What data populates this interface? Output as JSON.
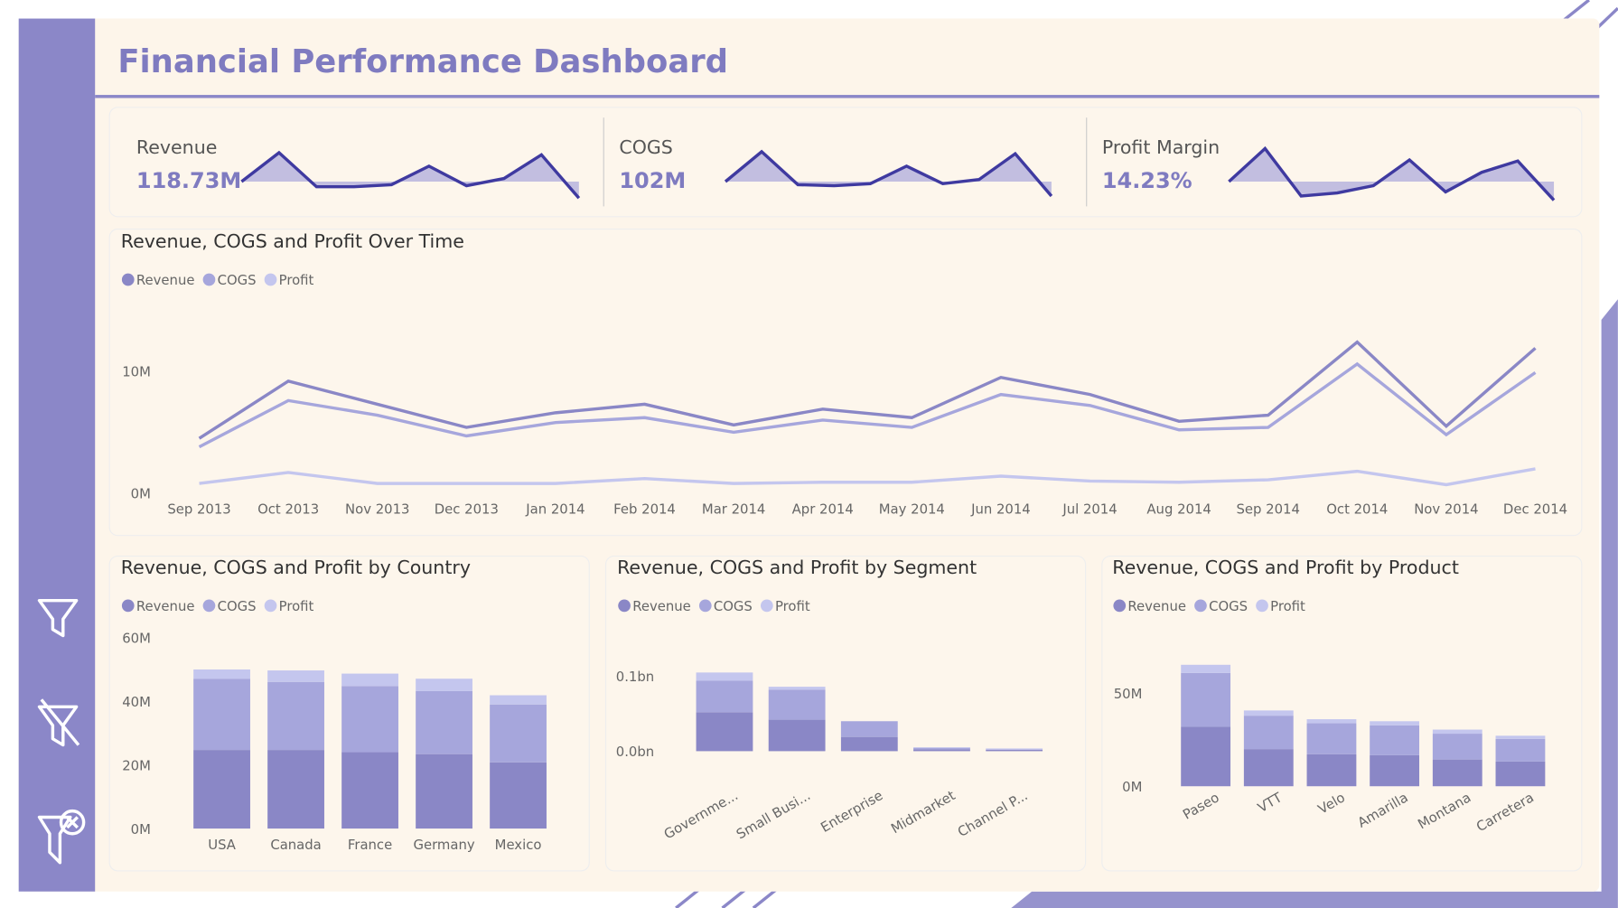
{
  "header": {
    "title": "Financial Performance Dashboard"
  },
  "kpis": [
    {
      "label": "Revenue",
      "value": "118.73M",
      "trend": [
        24,
        52,
        19,
        19,
        21,
        39,
        20,
        27,
        50,
        8
      ]
    },
    {
      "label": "COGS",
      "value": "102M",
      "trend": [
        24,
        53,
        21,
        20,
        22,
        39,
        22,
        26,
        51,
        10
      ]
    },
    {
      "label": "Profit Margin",
      "value": "14.23%",
      "trend": [
        24,
        56,
        10,
        13,
        20,
        45,
        14,
        33,
        44,
        6
      ]
    }
  ],
  "chart_data": [
    {
      "type": "line",
      "title": "Revenue, COGS and Profit Over Time",
      "categories": [
        "Sep 2013",
        "Oct 2013",
        "Nov 2013",
        "Dec 2013",
        "Jan 2014",
        "Feb 2014",
        "Mar 2014",
        "Apr 2014",
        "May 2014",
        "Jun 2014",
        "Jul 2014",
        "Aug 2014",
        "Sep 2014",
        "Oct 2014",
        "Nov 2014",
        "Dec 2014"
      ],
      "series": [
        {
          "name": "Revenue",
          "color": "#8a87c6",
          "values": [
            4500000,
            9200000,
            7300000,
            5400000,
            6600000,
            7300000,
            5600000,
            6900000,
            6200000,
            9500000,
            8100000,
            5900000,
            6400000,
            12400000,
            5500000,
            11900000
          ]
        },
        {
          "name": "COGS",
          "color": "#a6a6dc",
          "values": [
            3800000,
            7600000,
            6400000,
            4700000,
            5800000,
            6200000,
            5000000,
            6000000,
            5400000,
            8100000,
            7200000,
            5200000,
            5400000,
            10600000,
            4800000,
            9900000
          ]
        },
        {
          "name": "Profit",
          "color": "#c4c6ee",
          "values": [
            800000,
            1700000,
            800000,
            800000,
            800000,
            1200000,
            800000,
            900000,
            900000,
            1400000,
            1000000,
            900000,
            1100000,
            1800000,
            700000,
            2000000
          ]
        }
      ],
      "ylim": [
        0,
        16000000
      ],
      "yticks": [
        {
          "value": 0,
          "label": "0M"
        },
        {
          "value": 10000000,
          "label": "10M"
        }
      ]
    },
    {
      "type": "stacked_bar",
      "title": "Revenue, COGS and Profit by Country",
      "categories": [
        "USA",
        "Canada",
        "France",
        "Germany",
        "Mexico"
      ],
      "series": [
        {
          "name": "Revenue",
          "color": "#8a87c6",
          "values": [
            24700000,
            24700000,
            24000000,
            23400000,
            20800000
          ]
        },
        {
          "name": "COGS",
          "color": "#a6a6dc",
          "values": [
            22400000,
            21400000,
            20800000,
            19800000,
            18200000
          ]
        },
        {
          "name": "Profit",
          "color": "#c4c6ee",
          "values": [
            2900000,
            3600000,
            3900000,
            3900000,
            2900000
          ]
        }
      ],
      "ylim": [
        0,
        60000000
      ],
      "yticks": [
        {
          "value": 0,
          "label": "0M"
        },
        {
          "value": 20000000,
          "label": "20M"
        },
        {
          "value": 40000000,
          "label": "40M"
        },
        {
          "value": 60000000,
          "label": "60M"
        }
      ]
    },
    {
      "type": "stacked_bar",
      "title": "Revenue, COGS and Profit by Segment",
      "categories": [
        "Governme...",
        "Small Busi...",
        "Enterprise",
        "Midmarket",
        "Channel P..."
      ],
      "series": [
        {
          "name": "Revenue",
          "color": "#8a87c6",
          "values": [
            52000000,
            42000000,
            19000000,
            2400000,
            1800000
          ]
        },
        {
          "name": "COGS",
          "color": "#a6a6dc",
          "values": [
            42000000,
            40000000,
            21000000,
            2100000,
            400000
          ]
        },
        {
          "name": "Profit",
          "color": "#c4c6ee",
          "values": [
            11000000,
            4000000,
            0,
            700000,
            1400000
          ]
        }
      ],
      "ylim": [
        0,
        135000000
      ],
      "yticks": [
        {
          "value": 0,
          "label": "0.0bn"
        },
        {
          "value": 100000000,
          "label": "0.1bn"
        }
      ]
    },
    {
      "type": "stacked_bar",
      "title": "Revenue, COGS and Profit by Product",
      "categories": [
        "Paseo",
        "VTT",
        "Velo",
        "Amarilla",
        "Montana",
        "Carretera"
      ],
      "series": [
        {
          "name": "Revenue",
          "color": "#8a87c6",
          "values": [
            32000000,
            20000000,
            17200000,
            16700000,
            14400000,
            13300000
          ]
        },
        {
          "name": "COGS",
          "color": "#a6a6dc",
          "values": [
            29000000,
            18000000,
            16700000,
            16100000,
            13900000,
            12200000
          ]
        },
        {
          "name": "Profit",
          "color": "#c4c6ee",
          "values": [
            4400000,
            2800000,
            2200000,
            2200000,
            2200000,
            1700000
          ]
        }
      ],
      "ylim": [
        0,
        70000000
      ],
      "yticks": [
        {
          "value": 0,
          "label": "0M"
        },
        {
          "value": 50000000,
          "label": "50M"
        }
      ]
    }
  ]
}
